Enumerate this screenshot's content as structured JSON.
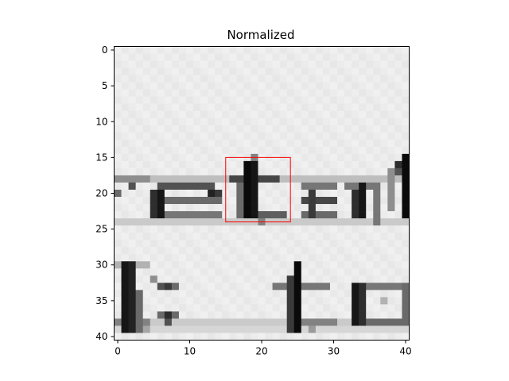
{
  "chart_data": {
    "type": "heatmap",
    "title": "Normalized",
    "colormap": "gray_r",
    "xlim": [
      -0.5,
      40.5
    ],
    "ylim": [
      40.5,
      -0.5
    ],
    "xticks": [
      0,
      10,
      20,
      30,
      40
    ],
    "yticks": [
      0,
      5,
      10,
      15,
      20,
      25,
      30,
      35,
      40
    ],
    "highlight_box": {
      "x0": 15,
      "y0": 15,
      "x1": 24,
      "y1": 24,
      "color": "#ff0000"
    },
    "grid_size": [
      41,
      41
    ],
    "strokes": [
      {
        "shape": "glyph",
        "text": "e",
        "row_top": 18,
        "row_bottom": 24,
        "col_left": 0,
        "col_right": 14,
        "intensity": 0.85
      },
      {
        "shape": "glyph",
        "text": "t",
        "row_top": 16,
        "row_bottom": 24,
        "col_left": 16,
        "col_right": 23,
        "intensity": 0.95
      },
      {
        "shape": "glyph",
        "text": "sal",
        "row_top": 18,
        "row_bottom": 24,
        "col_left": 26,
        "col_right": 40,
        "intensity": 0.9
      },
      {
        "shape": "glyph",
        "text": "l:",
        "row_top": 29,
        "row_bottom": 39,
        "col_left": 0,
        "col_right": 10,
        "intensity": 0.9
      },
      {
        "shape": "glyph",
        "text": "to",
        "row_top": 30,
        "row_bottom": 39,
        "col_left": 22,
        "col_right": 40,
        "intensity": 0.9
      }
    ]
  }
}
